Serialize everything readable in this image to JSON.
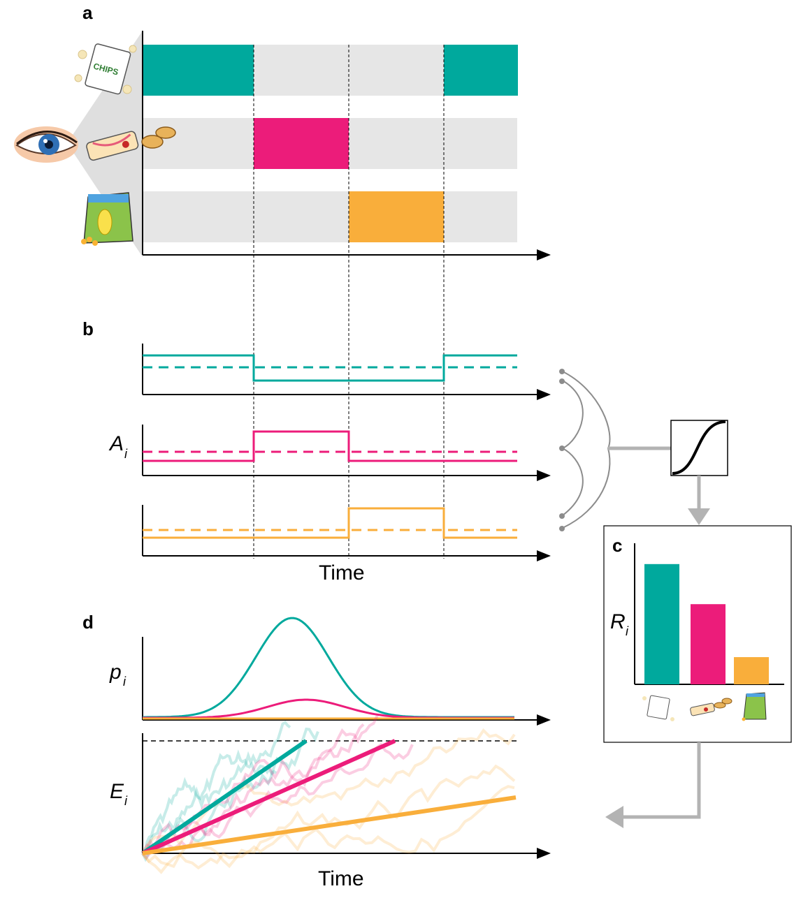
{
  "panels": {
    "a": {
      "letter": "a"
    },
    "b": {
      "letter": "b",
      "ylabel_main": "A",
      "ylabel_sub": "i",
      "xlabel": "Time"
    },
    "c": {
      "letter": "c",
      "ylabel_main": "R",
      "ylabel_sub": "i"
    },
    "d": {
      "letter": "d",
      "p_label_main": "p",
      "p_label_sub": "i",
      "e_label_main": "E",
      "e_label_sub": "i",
      "xlabel": "Time"
    }
  },
  "icons": {
    "chips": "CHIPS"
  },
  "colors": {
    "teal": "#00A99D",
    "magenta": "#EC1C7A",
    "orange": "#F9AE3B",
    "gray_band": "#E6E6E6",
    "connector": "#8C8C8C",
    "arrow": "#B3B3B3"
  },
  "chart_data": {
    "type": "bar",
    "categories": [
      "chips",
      "cookie roll",
      "corn snack"
    ],
    "values": [
      0.84,
      0.56,
      0.19
    ],
    "ylim": [
      0,
      1
    ]
  }
}
